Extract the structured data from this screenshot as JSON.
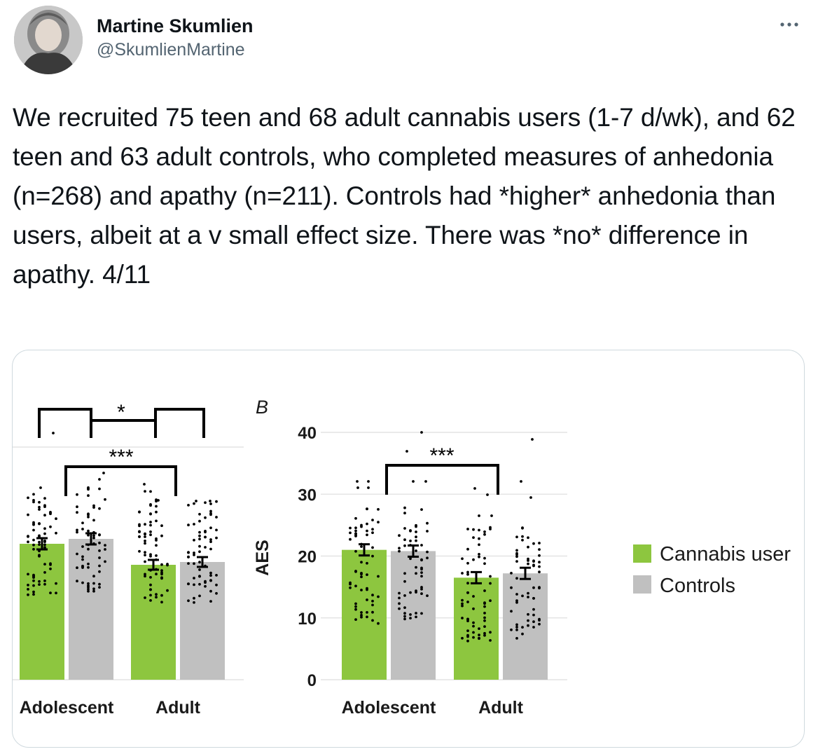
{
  "tweet": {
    "author_name": "Martine Skumlien",
    "author_handle": "@SkumlienMartine",
    "more_icon": "more-horizontal-icon",
    "text": "We recruited 75 teen and 68 adult cannabis users (1-7 d/wk), and 62 teen and 63 adult controls, who completed measures of anhedonia (n=268) and apathy (n=211). Controls had *higher* anhedonia than users, albeit at a v small effect size. There was *no* difference in apathy. 4/11"
  },
  "chart_data": [
    {
      "type": "bar",
      "categories": [
        "Adolescent",
        "Adult"
      ],
      "series": [
        {
          "name": "Cannabis users",
          "color": "#8dc63f",
          "values": [
            null,
            null
          ]
        },
        {
          "name": "Controls",
          "color": "#c0c0c0",
          "values": [
            null,
            null
          ]
        }
      ],
      "annotations": [
        "*",
        "***"
      ],
      "legend": "none"
    },
    {
      "type": "bar",
      "panel_label": "B",
      "ylabel": "AES",
      "ylim": [
        0,
        40
      ],
      "yticks": [
        "0",
        "10",
        "20",
        "30",
        "40"
      ],
      "categories": [
        "Adolescent",
        "Adult"
      ],
      "series": [
        {
          "name": "Cannabis users",
          "color": "#8dc63f",
          "values": [
            21,
            16.5
          ]
        },
        {
          "name": "Controls",
          "color": "#c0c0c0",
          "values": [
            20.8,
            17.2
          ]
        }
      ],
      "annotations": [
        "***"
      ],
      "legend": "right",
      "legend_entries": [
        "Cannabis user",
        "Controls"
      ]
    }
  ]
}
